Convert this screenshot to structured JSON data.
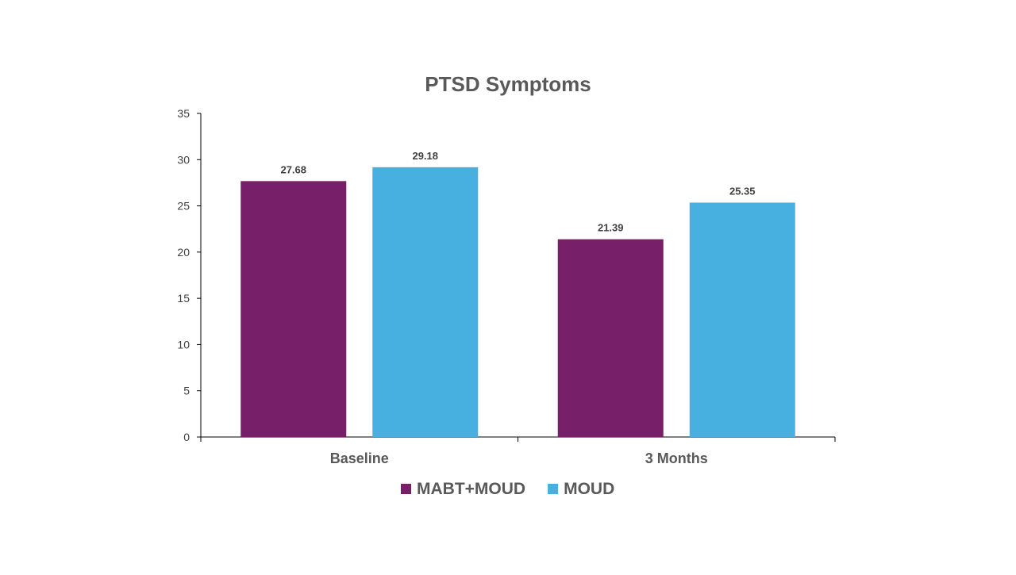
{
  "chart_data": {
    "type": "bar",
    "title": "PTSD Symptoms",
    "xlabel": "",
    "ylabel": "",
    "categories": [
      "Baseline",
      "3 Months"
    ],
    "series": [
      {
        "name": "MABT+MOUD",
        "values": [
          27.68,
          21.39
        ],
        "labels": [
          "27.68",
          "21.39"
        ],
        "color": "#772069"
      },
      {
        "name": "MOUD",
        "values": [
          29.18,
          25.35
        ],
        "labels": [
          "29.18",
          "25.35"
        ],
        "color": "#47B0E1"
      }
    ],
    "ylim": [
      0,
      35
    ],
    "yticks": [
      0,
      5,
      10,
      15,
      20,
      25,
      30,
      35
    ],
    "grid": false,
    "legend": "bottom"
  }
}
